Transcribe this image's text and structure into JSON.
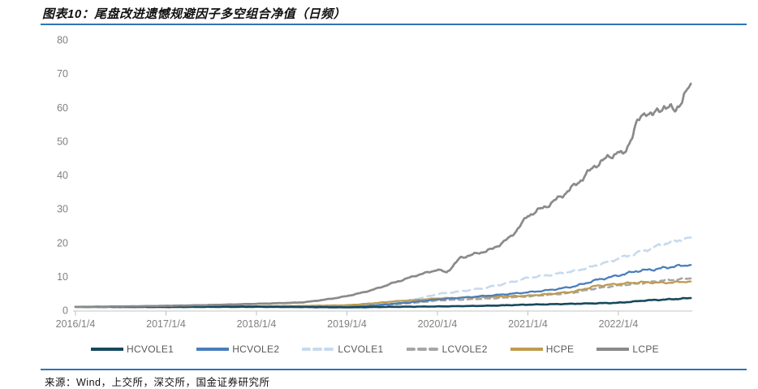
{
  "header": {
    "title": "图表10：尾盘改进遗憾规避因子多空组合净值（日频）"
  },
  "footer": {
    "source": "来源：Wind，上交所，深交所，国金证券研究所"
  },
  "colors": {
    "rule_blue": "#2E75B6",
    "axis_line": "#D9D9D9",
    "tick_mark": "#BFBFBF",
    "axis_text": "#808080",
    "legend_text": "#595959",
    "title_text": "#111111"
  },
  "chart_data": {
    "type": "line",
    "title": "图表10：尾盘改进遗憾规避因子多空组合净值（日频）",
    "xlabel": "",
    "ylabel": "",
    "grid": false,
    "legend_position": "bottom",
    "y_axis": {
      "min": 0,
      "max": 80,
      "step": 10,
      "ticks": [
        0,
        10,
        20,
        30,
        40,
        50,
        60,
        70,
        80
      ]
    },
    "x_axis": {
      "tick_labels": [
        "2016/1/4",
        "2017/1/4",
        "2018/1/4",
        "2019/1/4",
        "2020/1/4",
        "2021/1/4",
        "2022/1/4"
      ],
      "tick_years": [
        2016,
        2017,
        2018,
        2019,
        2020,
        2021,
        2022
      ],
      "range_years": [
        2016.0,
        2022.8
      ]
    },
    "series": [
      {
        "name": "HCVOLE1",
        "color": "#17485D",
        "dash": null,
        "width": 2.6,
        "noise": 0.05,
        "seed": 1,
        "z": 5,
        "anchors": [
          [
            2016,
            1.0
          ],
          [
            2016.5,
            0.97
          ],
          [
            2017,
            0.95
          ],
          [
            2017.5,
            1.0
          ],
          [
            2018,
            1.02
          ],
          [
            2018.5,
            0.95
          ],
          [
            2019,
            0.85
          ],
          [
            2019.5,
            1.0
          ],
          [
            2020,
            1.12
          ],
          [
            2020.5,
            1.3
          ],
          [
            2021,
            1.65
          ],
          [
            2021.5,
            1.9
          ],
          [
            2022,
            2.2
          ],
          [
            2022.3,
            2.9
          ],
          [
            2022.55,
            3.2
          ],
          [
            2022.8,
            3.6
          ]
        ]
      },
      {
        "name": "HCVOLE2",
        "color": "#4A7EBB",
        "dash": null,
        "width": 2.3,
        "noise": 0.035,
        "seed": 2,
        "z": 4,
        "anchors": [
          [
            2016,
            1.0
          ],
          [
            2016.5,
            0.98
          ],
          [
            2017,
            1.0
          ],
          [
            2017.5,
            1.02
          ],
          [
            2018,
            1.05
          ],
          [
            2018.5,
            1.0
          ],
          [
            2019,
            0.95
          ],
          [
            2019.5,
            1.9
          ],
          [
            2020,
            3.2
          ],
          [
            2020.5,
            4.2
          ],
          [
            2021,
            5.3
          ],
          [
            2021.25,
            6.0
          ],
          [
            2021.5,
            7.0
          ],
          [
            2021.75,
            8.9
          ],
          [
            2022,
            10.3
          ],
          [
            2022.2,
            11.6
          ],
          [
            2022.4,
            12.1
          ],
          [
            2022.6,
            12.9
          ],
          [
            2022.8,
            13.4
          ]
        ]
      },
      {
        "name": "LCVOLE1",
        "color": "#C7DAED",
        "dash": "9 6",
        "width": 2.6,
        "noise": 0.03,
        "seed": 3,
        "z": 1,
        "anchors": [
          [
            2016,
            1.0
          ],
          [
            2016.5,
            0.96
          ],
          [
            2017,
            1.0
          ],
          [
            2017.5,
            1.02
          ],
          [
            2018,
            1.05
          ],
          [
            2018.5,
            0.92
          ],
          [
            2019,
            1.0
          ],
          [
            2019.5,
            2.2
          ],
          [
            2020,
            4.8
          ],
          [
            2020.5,
            6.5
          ],
          [
            2021,
            9.6
          ],
          [
            2021.5,
            11.5
          ],
          [
            2021.75,
            13.2
          ],
          [
            2022,
            15.3
          ],
          [
            2022.25,
            17.3
          ],
          [
            2022.45,
            19.2
          ],
          [
            2022.6,
            20.3
          ],
          [
            2022.8,
            21.5
          ]
        ]
      },
      {
        "name": "LCVOLE2",
        "color": "#A6A6A6",
        "dash": "6 5",
        "width": 2.6,
        "noise": 0.03,
        "seed": 4,
        "z": 2,
        "anchors": [
          [
            2016,
            1.0
          ],
          [
            2017,
            0.98
          ],
          [
            2018,
            1.0
          ],
          [
            2018.5,
            0.95
          ],
          [
            2019,
            1.0
          ],
          [
            2019.5,
            1.7
          ],
          [
            2020,
            2.9
          ],
          [
            2020.5,
            3.4
          ],
          [
            2021,
            4.1
          ],
          [
            2021.5,
            5.2
          ],
          [
            2021.75,
            6.5
          ],
          [
            2022,
            7.3
          ],
          [
            2022.25,
            8.0
          ],
          [
            2022.5,
            8.8
          ],
          [
            2022.8,
            9.4
          ]
        ]
      },
      {
        "name": "HCPE",
        "color": "#BE9B50",
        "dash": null,
        "width": 2.3,
        "noise": 0.035,
        "seed": 5,
        "z": 3,
        "anchors": [
          [
            2016,
            1.0
          ],
          [
            2016.5,
            1.05
          ],
          [
            2017,
            1.1
          ],
          [
            2017.5,
            1.15
          ],
          [
            2018,
            1.2
          ],
          [
            2018.5,
            1.28
          ],
          [
            2019,
            1.5
          ],
          [
            2019.5,
            2.6
          ],
          [
            2020,
            3.5
          ],
          [
            2020.5,
            3.9
          ],
          [
            2021,
            4.3
          ],
          [
            2021.5,
            5.5
          ],
          [
            2021.75,
            7.2
          ],
          [
            2022,
            7.8
          ],
          [
            2022.25,
            8.3
          ],
          [
            2022.5,
            8.1
          ],
          [
            2022.8,
            8.5
          ]
        ]
      },
      {
        "name": "LCPE",
        "color": "#8A8A8A",
        "dash": null,
        "width": 2.7,
        "noise": 0.025,
        "seed": 6,
        "z": 6,
        "anchors": [
          [
            2016,
            1.0
          ],
          [
            2016.5,
            1.12
          ],
          [
            2017,
            1.3
          ],
          [
            2017.5,
            1.55
          ],
          [
            2018,
            1.9
          ],
          [
            2018.5,
            2.3
          ],
          [
            2019,
            4.2
          ],
          [
            2019.25,
            5.8
          ],
          [
            2019.5,
            8.0
          ],
          [
            2019.75,
            10.2
          ],
          [
            2020,
            12.0
          ],
          [
            2020.1,
            11.2
          ],
          [
            2020.25,
            15.5
          ],
          [
            2020.6,
            18.0
          ],
          [
            2020.8,
            21.5
          ],
          [
            2021,
            28.0
          ],
          [
            2021.25,
            31.5
          ],
          [
            2021.5,
            36.5
          ],
          [
            2021.75,
            43.0
          ],
          [
            2022,
            47.0
          ],
          [
            2022.05,
            45.5
          ],
          [
            2022.2,
            55.0
          ],
          [
            2022.3,
            59.0
          ],
          [
            2022.38,
            57.5
          ],
          [
            2022.5,
            60.5
          ],
          [
            2022.62,
            59.0
          ],
          [
            2022.72,
            63.0
          ],
          [
            2022.8,
            67.0
          ]
        ]
      }
    ]
  }
}
